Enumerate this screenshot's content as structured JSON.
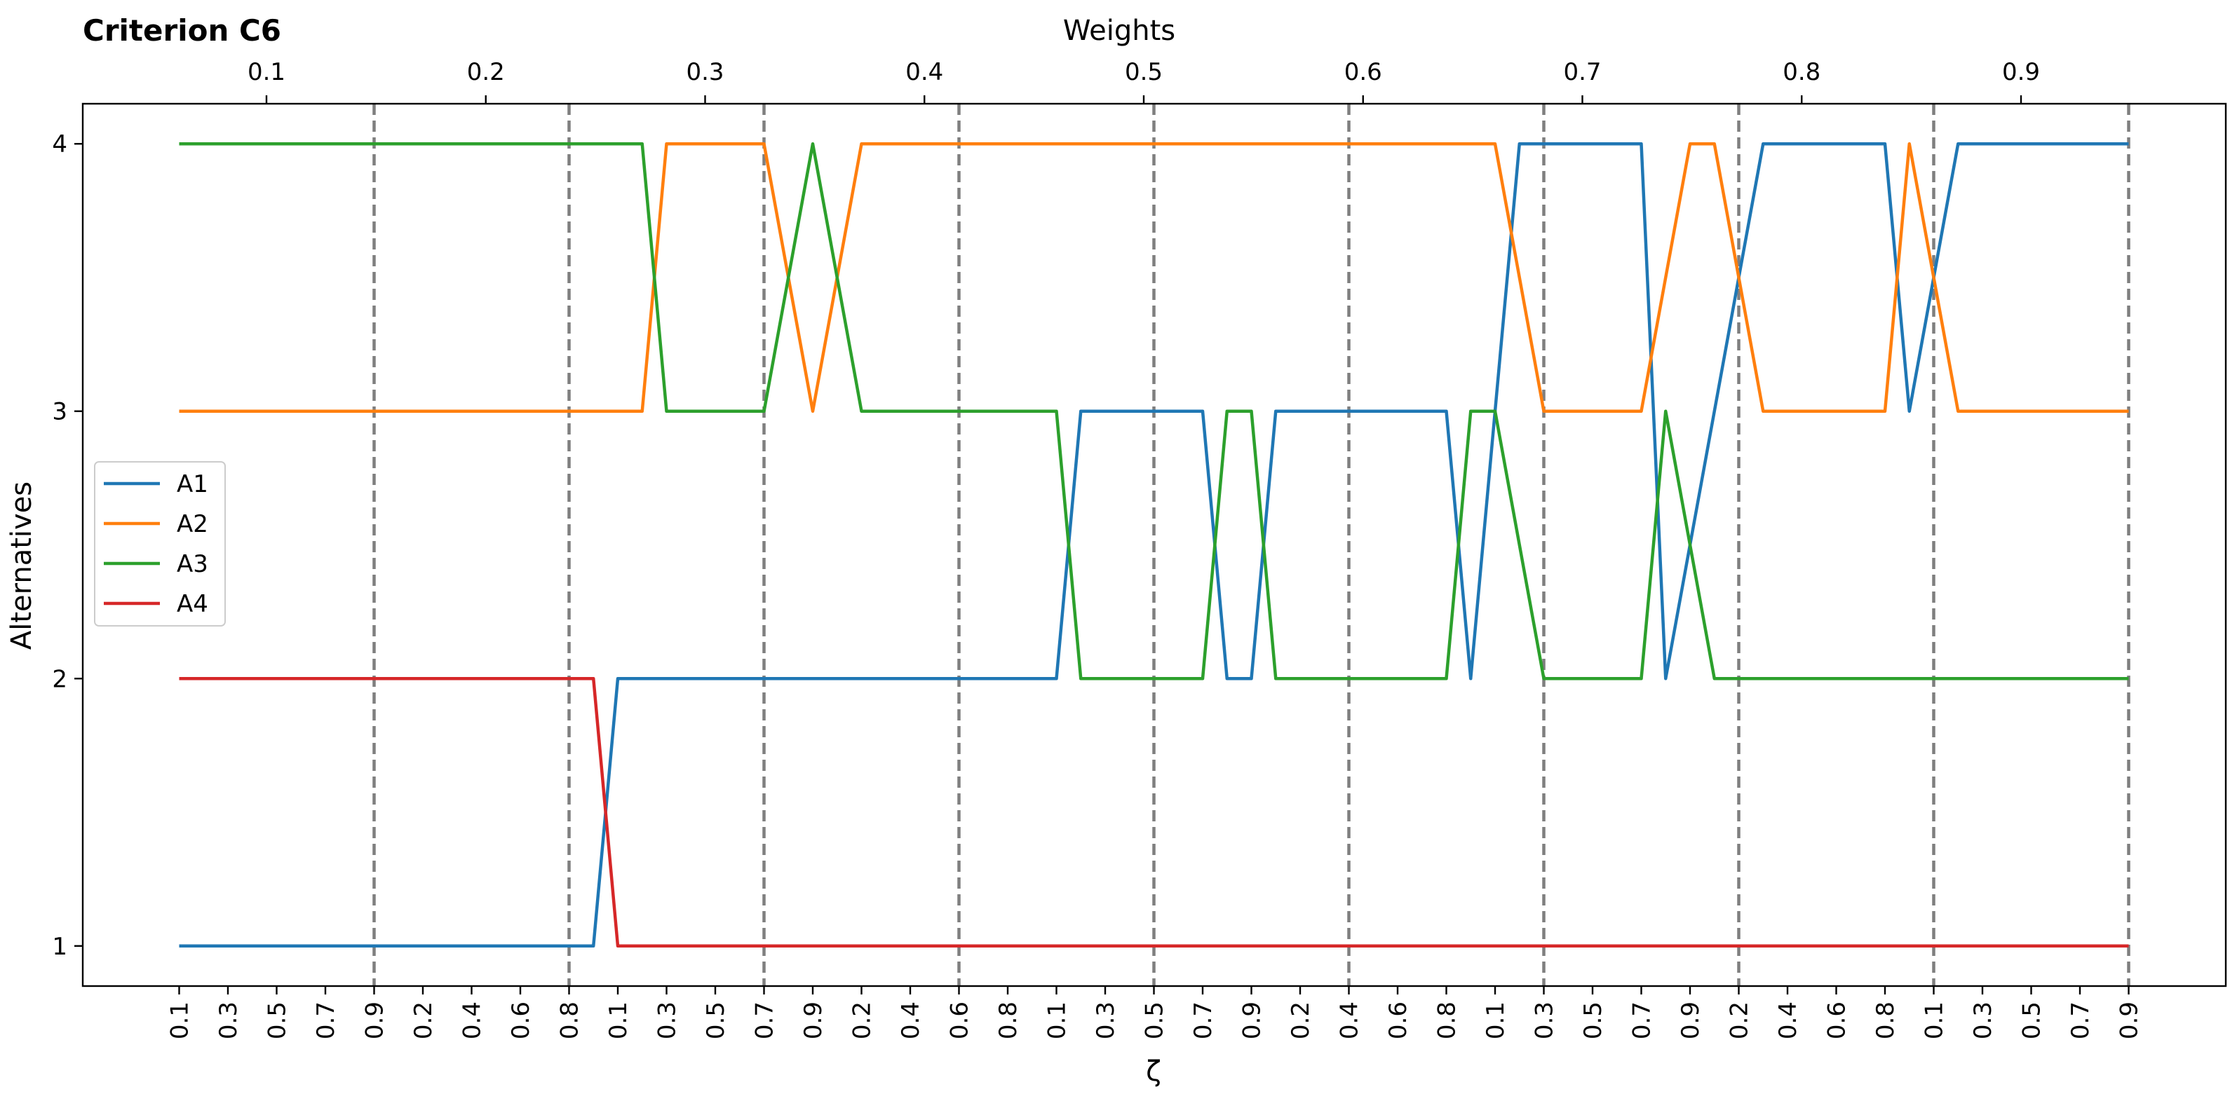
{
  "chart_data": {
    "type": "line",
    "title": "Criterion C6",
    "top_xlabel": "Weights",
    "xlabel": "ζ",
    "ylabel": "Alternatives",
    "ylim": [
      0.85,
      4.15
    ],
    "yticks": [
      1,
      2,
      3,
      4
    ],
    "weights": [
      0.1,
      0.2,
      0.3,
      0.4,
      0.5,
      0.6,
      0.7,
      0.8,
      0.9
    ],
    "zeta_ticks": [
      "0.1",
      "0.3",
      "0.5",
      "0.7",
      "0.9",
      "0.2",
      "0.4",
      "0.6",
      "0.8",
      "0.1",
      "0.3",
      "0.5",
      "0.7",
      "0.9",
      "0.2",
      "0.4",
      "0.6",
      "0.8",
      "0.1",
      "0.3",
      "0.5",
      "0.7",
      "0.9",
      "0.2",
      "0.4",
      "0.6",
      "0.8",
      "0.1",
      "0.3",
      "0.5",
      "0.7",
      "0.9",
      "0.2",
      "0.4",
      "0.6",
      "0.8",
      "0.1",
      "0.3",
      "0.5",
      "0.7",
      "0.9"
    ],
    "grid": false,
    "legend_position": "center-left",
    "series": [
      {
        "name": "A1",
        "color": "#1f77b4",
        "segments": [
          {
            "value": 1,
            "from": 0,
            "to": 17
          },
          {
            "value": 2,
            "from": 18,
            "to": 36
          },
          {
            "value": 3,
            "from": 37,
            "to": 42
          },
          {
            "value": 2,
            "from": 43,
            "to": 44
          },
          {
            "value": 3,
            "from": 45,
            "to": 52
          },
          {
            "value": 2,
            "from": 53,
            "to": 53
          },
          {
            "value": 4,
            "from": 55,
            "to": 60
          },
          {
            "value": 2,
            "from": 61,
            "to": 61
          },
          {
            "value": 3,
            "from": 63,
            "to": 63
          },
          {
            "value": 4,
            "from": 65,
            "to": 70
          },
          {
            "value": 3,
            "from": 71,
            "to": 71
          },
          {
            "value": 4,
            "from": 73,
            "to": 80
          }
        ]
      },
      {
        "name": "A2",
        "color": "#ff7f0e",
        "segments": [
          {
            "value": 3,
            "from": 0,
            "to": 19
          },
          {
            "value": 4,
            "from": 20,
            "to": 24
          },
          {
            "value": 3,
            "from": 26,
            "to": 26
          },
          {
            "value": 4,
            "from": 28,
            "to": 54
          },
          {
            "value": 3,
            "from": 56,
            "to": 60
          },
          {
            "value": 4,
            "from": 62,
            "to": 63
          },
          {
            "value": 3,
            "from": 65,
            "to": 70
          },
          {
            "value": 4,
            "from": 71,
            "to": 71
          },
          {
            "value": 3,
            "from": 73,
            "to": 80
          }
        ]
      },
      {
        "name": "A3",
        "color": "#2ca02c",
        "segments": [
          {
            "value": 4,
            "from": 0,
            "to": 19
          },
          {
            "value": 3,
            "from": 20,
            "to": 24
          },
          {
            "value": 4,
            "from": 26,
            "to": 26
          },
          {
            "value": 3,
            "from": 28,
            "to": 36
          },
          {
            "value": 2,
            "from": 37,
            "to": 42
          },
          {
            "value": 3,
            "from": 43,
            "to": 44
          },
          {
            "value": 2,
            "from": 45,
            "to": 52
          },
          {
            "value": 3,
            "from": 53,
            "to": 54
          },
          {
            "value": 2,
            "from": 56,
            "to": 60
          },
          {
            "value": 3,
            "from": 61,
            "to": 61
          },
          {
            "value": 2,
            "from": 63,
            "to": 80
          }
        ]
      },
      {
        "name": "A4",
        "color": "#d62728",
        "segments": [
          {
            "value": 2,
            "from": 0,
            "to": 17
          },
          {
            "value": 1,
            "from": 18,
            "to": 80
          }
        ]
      }
    ]
  }
}
